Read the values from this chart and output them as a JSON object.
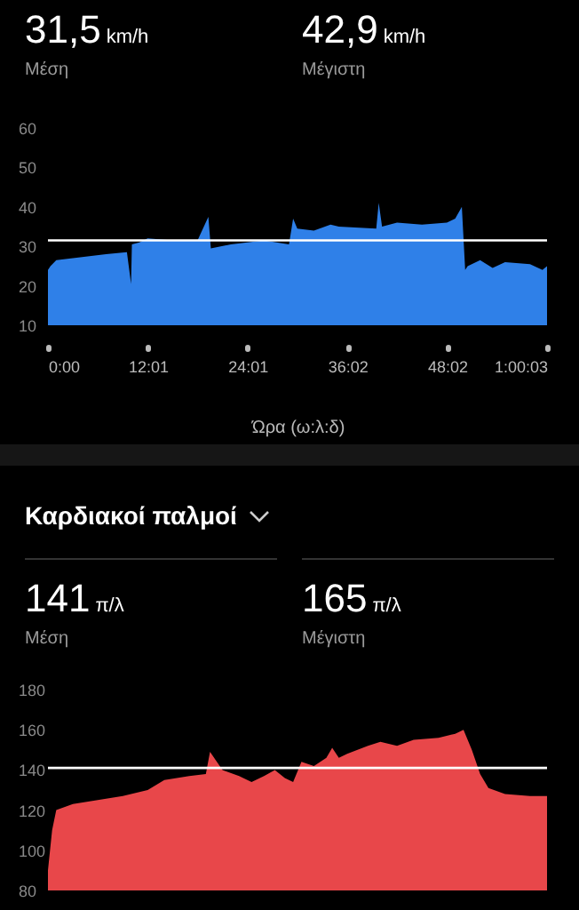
{
  "chart_data": [
    {
      "type": "area",
      "xlabel": "Ώρα (ω:λ:δ)",
      "annotations": [
        "31,5",
        "km/h",
        "Μέση",
        "42,9",
        "km/h",
        "Μέγιστη"
      ],
      "x": [
        0,
        0.3,
        1,
        3,
        5,
        7,
        9.5,
        10,
        10.1,
        11,
        12,
        15,
        18,
        19.3,
        19.6,
        22,
        26,
        29,
        29.5,
        30,
        32,
        34,
        35,
        39.5,
        39.8,
        40.2,
        42,
        45,
        48,
        49,
        49.8,
        50.2,
        50.5,
        52,
        53.5,
        55,
        58,
        59.5,
        60.05
      ],
      "series": [
        {
          "color": "#2f80e8",
          "values": [
            24,
            25,
            26.5,
            27,
            27.5,
            28,
            28.5,
            20.5,
            30.5,
            31,
            32,
            31.5,
            31.5,
            37.5,
            29.5,
            30.5,
            31.5,
            30.5,
            37,
            34.5,
            34,
            35.5,
            35,
            34.5,
            41,
            35,
            36,
            35.5,
            36,
            37,
            40,
            24,
            25,
            26.5,
            24.5,
            26,
            25.5,
            24,
            25
          ]
        }
      ],
      "xlim": [
        0,
        60.05
      ],
      "xticks": [
        {
          "value": 0,
          "label": "0:00"
        },
        {
          "value": 12.017,
          "label": "12:01"
        },
        {
          "value": 24.017,
          "label": "24:01"
        },
        {
          "value": 36.033,
          "label": "36:02"
        },
        {
          "value": 48.033,
          "label": "48:02"
        },
        {
          "value": 60.05,
          "label": "1:00:03"
        }
      ],
      "ylim": [
        10,
        60
      ],
      "yticks": [
        10,
        20,
        30,
        40,
        50,
        60
      ],
      "ref_lines": [
        {
          "axis": "y",
          "value": 31.5,
          "color": "#ffffff"
        }
      ]
    },
    {
      "type": "area",
      "title": "Καρδιακοί παλμοί",
      "annotations": [
        "141",
        "π/λ",
        "Μέση",
        "165",
        "π/λ",
        "Μέγιστη"
      ],
      "x": [
        0,
        0.5,
        1,
        3,
        6,
        9,
        12,
        14,
        17,
        19,
        19.5,
        21,
        23,
        24.5,
        26,
        27.3,
        28.5,
        29.5,
        30.5,
        32,
        33.5,
        34.2,
        35,
        36,
        38.5,
        40,
        42,
        44,
        47,
        49,
        50,
        51,
        52,
        53,
        55,
        58,
        60.05
      ],
      "series": [
        {
          "color": "#e8474a",
          "values": [
            90,
            110,
            120,
            123,
            125,
            127,
            130,
            135,
            137,
            138,
            149,
            140,
            137,
            134,
            137,
            140,
            136,
            134,
            144,
            142,
            146,
            151,
            146,
            148,
            152,
            154,
            152,
            155,
            156,
            158,
            160,
            150,
            138,
            131,
            128,
            127,
            127
          ]
        }
      ],
      "xlim": [
        0,
        60.05
      ],
      "tick_labels": "y",
      "ylim": [
        80,
        180
      ],
      "yticks": [
        80,
        100,
        120,
        140,
        160,
        180
      ],
      "ref_lines": [
        {
          "axis": "y",
          "value": 141,
          "color": "#ffffff"
        }
      ]
    }
  ]
}
